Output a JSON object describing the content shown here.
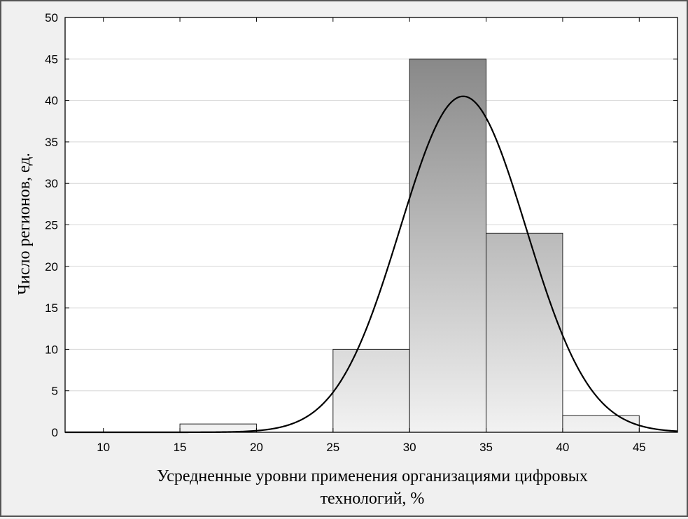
{
  "chart_data": {
    "type": "bar",
    "subtype": "histogram with fitted normal curve",
    "title": "",
    "xlabel_lines": [
      "Усредненные уровни применения организациями цифровых",
      "технологий, %"
    ],
    "ylabel": "Число регионов, ед.",
    "xlim": [
      7.5,
      47.5
    ],
    "ylim": [
      0,
      50
    ],
    "xticks": [
      10,
      15,
      20,
      25,
      30,
      35,
      40,
      45
    ],
    "yticks": [
      0,
      5,
      10,
      15,
      20,
      25,
      30,
      35,
      40,
      45,
      50
    ],
    "grid": "horizontal",
    "bins": [
      {
        "from": 15,
        "to": 20,
        "count": 1
      },
      {
        "from": 20,
        "to": 25,
        "count": 0
      },
      {
        "from": 25,
        "to": 30,
        "count": 10
      },
      {
        "from": 30,
        "to": 35,
        "count": 45
      },
      {
        "from": 35,
        "to": 40,
        "count": 24
      },
      {
        "from": 40,
        "to": 45,
        "count": 2
      }
    ],
    "normal_curve": {
      "mean": 33.5,
      "sd": 4.12,
      "peak": 40.5
    },
    "colors": {
      "bar_dark": "#888888",
      "bar_light": "#f2f2f2",
      "curve": "#000000",
      "grid": "#d6d6d6"
    }
  }
}
